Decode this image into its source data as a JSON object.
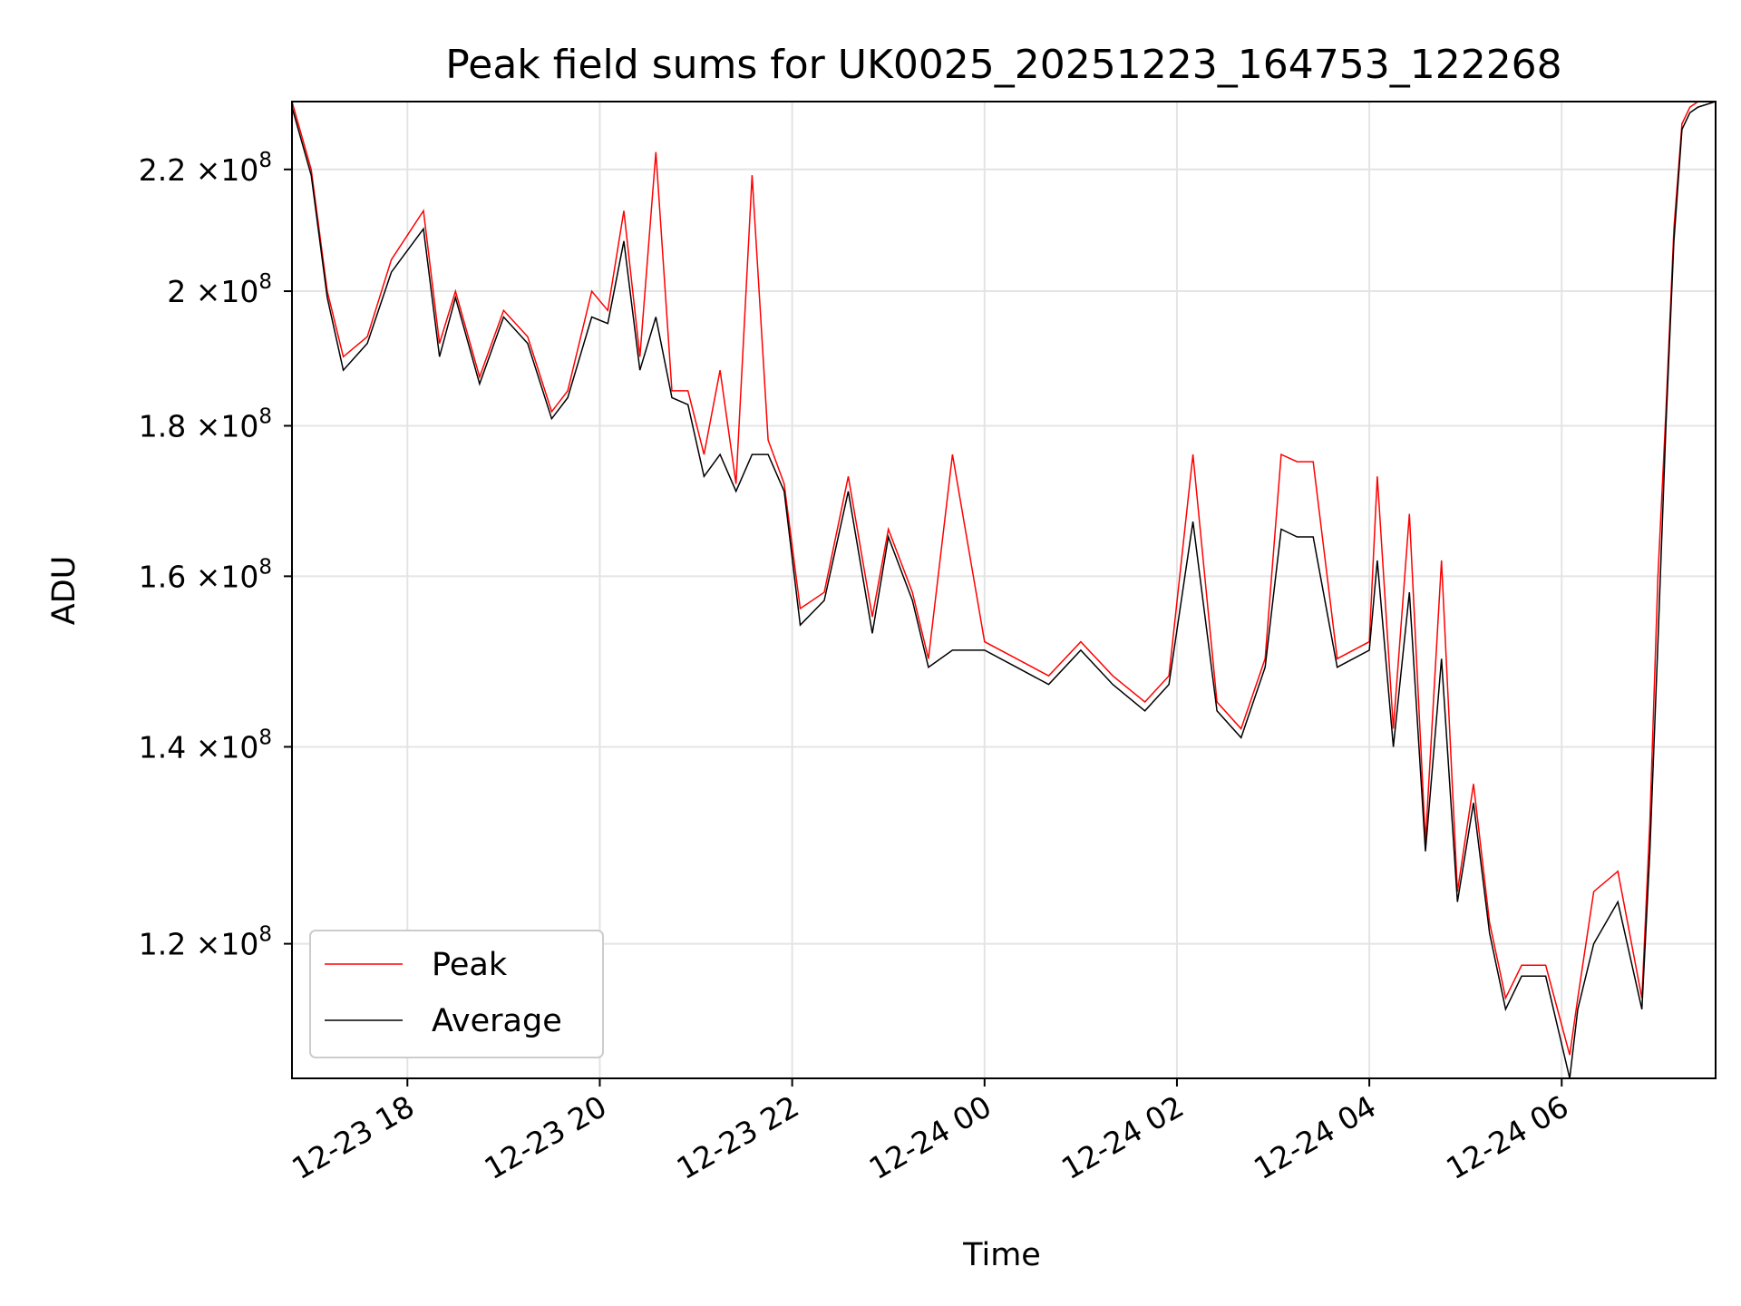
{
  "chart_data": {
    "type": "line",
    "title": "Peak field sums for UK0025_20251223_164753_122268",
    "xlabel": "Time",
    "ylabel": "ADU",
    "y_scale": "log",
    "xlim": [
      "2025-12-23 16:48",
      "2025-12-24 07:36"
    ],
    "ylim": [
      108000000,
      232000000
    ],
    "x_ticks": [
      {
        "value": "2025-12-23 18:00",
        "label": "12-23 18"
      },
      {
        "value": "2025-12-23 20:00",
        "label": "12-23 20"
      },
      {
        "value": "2025-12-23 22:00",
        "label": "12-23 22"
      },
      {
        "value": "2025-12-24 00:00",
        "label": "12-24 00"
      },
      {
        "value": "2025-12-24 02:00",
        "label": "12-24 02"
      },
      {
        "value": "2025-12-24 04:00",
        "label": "12-24 04"
      },
      {
        "value": "2025-12-24 06:00",
        "label": "12-24 06"
      }
    ],
    "y_ticks": [
      {
        "value": 120000000,
        "mantissa": "1.2",
        "exponent": "8"
      },
      {
        "value": 140000000,
        "mantissa": "1.4",
        "exponent": "8"
      },
      {
        "value": 160000000,
        "mantissa": "1.6",
        "exponent": "8"
      },
      {
        "value": 180000000,
        "mantissa": "1.8",
        "exponent": "8"
      },
      {
        "value": 200000000,
        "mantissa": "2",
        "exponent": "8"
      },
      {
        "value": 220000000,
        "mantissa": "2.2",
        "exponent": "8"
      }
    ],
    "tick_times_label": "×10",
    "grid": true,
    "legend_position": "lower-left",
    "series": [
      {
        "name": "Peak",
        "color": "#ff0000",
        "x": [
          "2025-12-23 16:48",
          "2025-12-23 17:00",
          "2025-12-23 17:10",
          "2025-12-23 17:20",
          "2025-12-23 17:35",
          "2025-12-23 17:50",
          "2025-12-23 18:10",
          "2025-12-23 18:20",
          "2025-12-23 18:30",
          "2025-12-23 18:45",
          "2025-12-23 19:00",
          "2025-12-23 19:15",
          "2025-12-23 19:30",
          "2025-12-23 19:40",
          "2025-12-23 19:55",
          "2025-12-23 20:05",
          "2025-12-23 20:15",
          "2025-12-23 20:25",
          "2025-12-23 20:35",
          "2025-12-23 20:45",
          "2025-12-23 20:55",
          "2025-12-23 21:05",
          "2025-12-23 21:15",
          "2025-12-23 21:25",
          "2025-12-23 21:35",
          "2025-12-23 21:45",
          "2025-12-23 21:55",
          "2025-12-23 22:05",
          "2025-12-23 22:20",
          "2025-12-23 22:35",
          "2025-12-23 22:50",
          "2025-12-23 23:00",
          "2025-12-23 23:15",
          "2025-12-23 23:25",
          "2025-12-23 23:40",
          "2025-12-24 00:00",
          "2025-12-24 00:20",
          "2025-12-24 00:40",
          "2025-12-24 01:00",
          "2025-12-24 01:20",
          "2025-12-24 01:40",
          "2025-12-24 01:55",
          "2025-12-24 02:10",
          "2025-12-24 02:25",
          "2025-12-24 02:40",
          "2025-12-24 02:55",
          "2025-12-24 03:05",
          "2025-12-24 03:15",
          "2025-12-24 03:25",
          "2025-12-24 03:40",
          "2025-12-24 04:00",
          "2025-12-24 04:05",
          "2025-12-24 04:15",
          "2025-12-24 04:25",
          "2025-12-24 04:35",
          "2025-12-24 04:45",
          "2025-12-24 04:55",
          "2025-12-24 05:05",
          "2025-12-24 05:15",
          "2025-12-24 05:25",
          "2025-12-24 05:35",
          "2025-12-24 05:50",
          "2025-12-24 06:05",
          "2025-12-24 06:10",
          "2025-12-24 06:20",
          "2025-12-24 06:35",
          "2025-12-24 06:50",
          "2025-12-24 06:55",
          "2025-12-24 07:00",
          "2025-12-24 07:05",
          "2025-12-24 07:10",
          "2025-12-24 07:15",
          "2025-12-24 07:20",
          "2025-12-24 07:25",
          "2025-12-24 07:36"
        ],
        "values": [
          232000000,
          220000000,
          200000000,
          190000000,
          193000000,
          205000000,
          213000000,
          192000000,
          200000000,
          187000000,
          197000000,
          193000000,
          182000000,
          185000000,
          200000000,
          197000000,
          213000000,
          190000000,
          223000000,
          185000000,
          185000000,
          176000000,
          188000000,
          172000000,
          219000000,
          178000000,
          172000000,
          156000000,
          158000000,
          173000000,
          155000000,
          166000000,
          158000000,
          150000000,
          176000000,
          152000000,
          150000000,
          148000000,
          152000000,
          148000000,
          145000000,
          148000000,
          176000000,
          145000000,
          142000000,
          150000000,
          176000000,
          175000000,
          175000000,
          150000000,
          152000000,
          173000000,
          142000000,
          168000000,
          130000000,
          162000000,
          125000000,
          136000000,
          122000000,
          115000000,
          118000000,
          118000000,
          110000000,
          115000000,
          125000000,
          127000000,
          115000000,
          132000000,
          160000000,
          182000000,
          210000000,
          228000000,
          231000000,
          232000000,
          232000000
        ]
      },
      {
        "name": "Average",
        "color": "#000000",
        "x": [
          "2025-12-23 16:48",
          "2025-12-23 17:00",
          "2025-12-23 17:10",
          "2025-12-23 17:20",
          "2025-12-23 17:35",
          "2025-12-23 17:50",
          "2025-12-23 18:10",
          "2025-12-23 18:20",
          "2025-12-23 18:30",
          "2025-12-23 18:45",
          "2025-12-23 19:00",
          "2025-12-23 19:15",
          "2025-12-23 19:30",
          "2025-12-23 19:40",
          "2025-12-23 19:55",
          "2025-12-23 20:05",
          "2025-12-23 20:15",
          "2025-12-23 20:25",
          "2025-12-23 20:35",
          "2025-12-23 20:45",
          "2025-12-23 20:55",
          "2025-12-23 21:05",
          "2025-12-23 21:15",
          "2025-12-23 21:25",
          "2025-12-23 21:35",
          "2025-12-23 21:45",
          "2025-12-23 21:55",
          "2025-12-23 22:05",
          "2025-12-23 22:20",
          "2025-12-23 22:35",
          "2025-12-23 22:50",
          "2025-12-23 23:00",
          "2025-12-23 23:15",
          "2025-12-23 23:25",
          "2025-12-23 23:40",
          "2025-12-24 00:00",
          "2025-12-24 00:20",
          "2025-12-24 00:40",
          "2025-12-24 01:00",
          "2025-12-24 01:20",
          "2025-12-24 01:40",
          "2025-12-24 01:55",
          "2025-12-24 02:10",
          "2025-12-24 02:25",
          "2025-12-24 02:40",
          "2025-12-24 02:55",
          "2025-12-24 03:05",
          "2025-12-24 03:15",
          "2025-12-24 03:25",
          "2025-12-24 03:40",
          "2025-12-24 04:00",
          "2025-12-24 04:05",
          "2025-12-24 04:15",
          "2025-12-24 04:25",
          "2025-12-24 04:35",
          "2025-12-24 04:45",
          "2025-12-24 04:55",
          "2025-12-24 05:05",
          "2025-12-24 05:15",
          "2025-12-24 05:25",
          "2025-12-24 05:35",
          "2025-12-24 05:50",
          "2025-12-24 06:05",
          "2025-12-24 06:10",
          "2025-12-24 06:20",
          "2025-12-24 06:35",
          "2025-12-24 06:50",
          "2025-12-24 06:55",
          "2025-12-24 07:00",
          "2025-12-24 07:05",
          "2025-12-24 07:10",
          "2025-12-24 07:15",
          "2025-12-24 07:20",
          "2025-12-24 07:25",
          "2025-12-24 07:36"
        ],
        "values": [
          231000000,
          219000000,
          199000000,
          188000000,
          192000000,
          203000000,
          210000000,
          190000000,
          199000000,
          186000000,
          196000000,
          192000000,
          181000000,
          184000000,
          196000000,
          195000000,
          208000000,
          188000000,
          196000000,
          184000000,
          183000000,
          173000000,
          176000000,
          171000000,
          176000000,
          176000000,
          171000000,
          154000000,
          157000000,
          171000000,
          153000000,
          165000000,
          157000000,
          149000000,
          151000000,
          151000000,
          149000000,
          147000000,
          151000000,
          147000000,
          144000000,
          147000000,
          167000000,
          144000000,
          141000000,
          149000000,
          166000000,
          165000000,
          165000000,
          149000000,
          151000000,
          162000000,
          140000000,
          158000000,
          129000000,
          150000000,
          124000000,
          134000000,
          121000000,
          114000000,
          117000000,
          117000000,
          108000000,
          114000000,
          120000000,
          124000000,
          114000000,
          129000000,
          152000000,
          180000000,
          208000000,
          227000000,
          230000000,
          231000000,
          232000000
        ]
      }
    ]
  }
}
